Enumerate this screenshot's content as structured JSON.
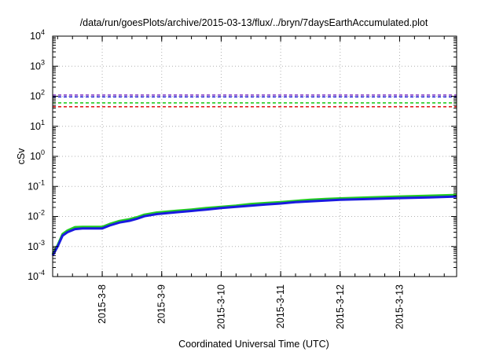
{
  "chart_data": {
    "type": "line",
    "title": "/data/run/goesPlots/archive/2015-03-13/flux/../bryn/7daysEarthAccumulated.plot",
    "xlabel": "Coordinated Universal Time (UTC)",
    "ylabel": "cSv",
    "yscale": "log",
    "ylim": [
      0.0001,
      10000
    ],
    "xlim": [
      "2015-03-07 04:00",
      "2015-03-13 23:00"
    ],
    "y_ticks": [
      {
        "value": 0.0001,
        "label": "10",
        "exp": "-4"
      },
      {
        "value": 0.001,
        "label": "10",
        "exp": "-3"
      },
      {
        "value": 0.01,
        "label": "10",
        "exp": "-2"
      },
      {
        "value": 0.1,
        "label": "10",
        "exp": "-1"
      },
      {
        "value": 1,
        "label": "10",
        "exp": "0"
      },
      {
        "value": 10,
        "label": "10",
        "exp": "1"
      },
      {
        "value": 100,
        "label": "10",
        "exp": "2"
      },
      {
        "value": 1000,
        "label": "10",
        "exp": "3"
      },
      {
        "value": 10000,
        "label": "10",
        "exp": "4"
      }
    ],
    "x_ticks": [
      {
        "value": "2015-03-08 00:00",
        "label": "2015-3-8"
      },
      {
        "value": "2015-03-09 00:00",
        "label": "2015-3-9"
      },
      {
        "value": "2015-03-10 00:00",
        "label": "2015-3-10"
      },
      {
        "value": "2015-03-11 00:00",
        "label": "2015-3-11"
      },
      {
        "value": "2015-03-12 00:00",
        "label": "2015-3-12"
      },
      {
        "value": "2015-03-13 00:00",
        "label": "2015-3-13"
      }
    ],
    "grid": true,
    "threshold_lines": [
      {
        "value": 110,
        "color": "#8b44c8"
      },
      {
        "value": 95,
        "color": "#2b2bd8"
      },
      {
        "value": 60,
        "color": "#22cc22"
      },
      {
        "value": 45,
        "color": "#e02020"
      }
    ],
    "series": [
      {
        "color": "#22cc22",
        "x": [
          "2015-03-07 04:00",
          "2015-03-07 06:00",
          "2015-03-07 08:00",
          "2015-03-07 10:00",
          "2015-03-07 13:00",
          "2015-03-07 16:00",
          "2015-03-07 20:00",
          "2015-03-08 00:00",
          "2015-03-08 03:00",
          "2015-03-08 07:00",
          "2015-03-08 11:00",
          "2015-03-08 14:00",
          "2015-03-08 17:00",
          "2015-03-08 22:00",
          "2015-03-09 06:00",
          "2015-03-09 12:00",
          "2015-03-09 18:00",
          "2015-03-10 00:00",
          "2015-03-10 06:00",
          "2015-03-10 12:00",
          "2015-03-10 18:00",
          "2015-03-11 00:00",
          "2015-03-11 06:00",
          "2015-03-11 12:00",
          "2015-03-11 18:00",
          "2015-03-12 00:00",
          "2015-03-12 12:00",
          "2015-03-13 00:00",
          "2015-03-13 12:00",
          "2015-03-13 23:00"
        ],
        "values": [
          0.00056,
          0.0011,
          0.0026,
          0.0034,
          0.0044,
          0.0045,
          0.0045,
          0.0045,
          0.0056,
          0.0071,
          0.0081,
          0.0094,
          0.0115,
          0.0135,
          0.0155,
          0.017,
          0.019,
          0.021,
          0.023,
          0.026,
          0.028,
          0.03,
          0.033,
          0.036,
          0.038,
          0.04,
          0.043,
          0.046,
          0.049,
          0.052
        ]
      },
      {
        "color": "#1a1ae0",
        "x": [
          "2015-03-07 04:00",
          "2015-03-07 06:00",
          "2015-03-07 08:00",
          "2015-03-07 10:00",
          "2015-03-07 13:00",
          "2015-03-07 16:00",
          "2015-03-07 20:00",
          "2015-03-08 00:00",
          "2015-03-08 03:00",
          "2015-03-08 07:00",
          "2015-03-08 11:00",
          "2015-03-08 14:00",
          "2015-03-08 17:00",
          "2015-03-08 22:00",
          "2015-03-09 06:00",
          "2015-03-09 12:00",
          "2015-03-09 18:00",
          "2015-03-10 00:00",
          "2015-03-10 06:00",
          "2015-03-10 12:00",
          "2015-03-10 18:00",
          "2015-03-11 00:00",
          "2015-03-11 06:00",
          "2015-03-11 12:00",
          "2015-03-11 18:00",
          "2015-03-12 00:00",
          "2015-03-12 12:00",
          "2015-03-13 00:00",
          "2015-03-13 12:00",
          "2015-03-13 23:00"
        ],
        "values": [
          0.0005,
          0.001,
          0.0023,
          0.003,
          0.0038,
          0.004,
          0.004,
          0.004,
          0.005,
          0.0063,
          0.0072,
          0.0084,
          0.0102,
          0.012,
          0.0138,
          0.0152,
          0.017,
          0.019,
          0.021,
          0.023,
          0.025,
          0.027,
          0.03,
          0.032,
          0.034,
          0.036,
          0.038,
          0.041,
          0.043,
          0.046
        ]
      }
    ]
  }
}
